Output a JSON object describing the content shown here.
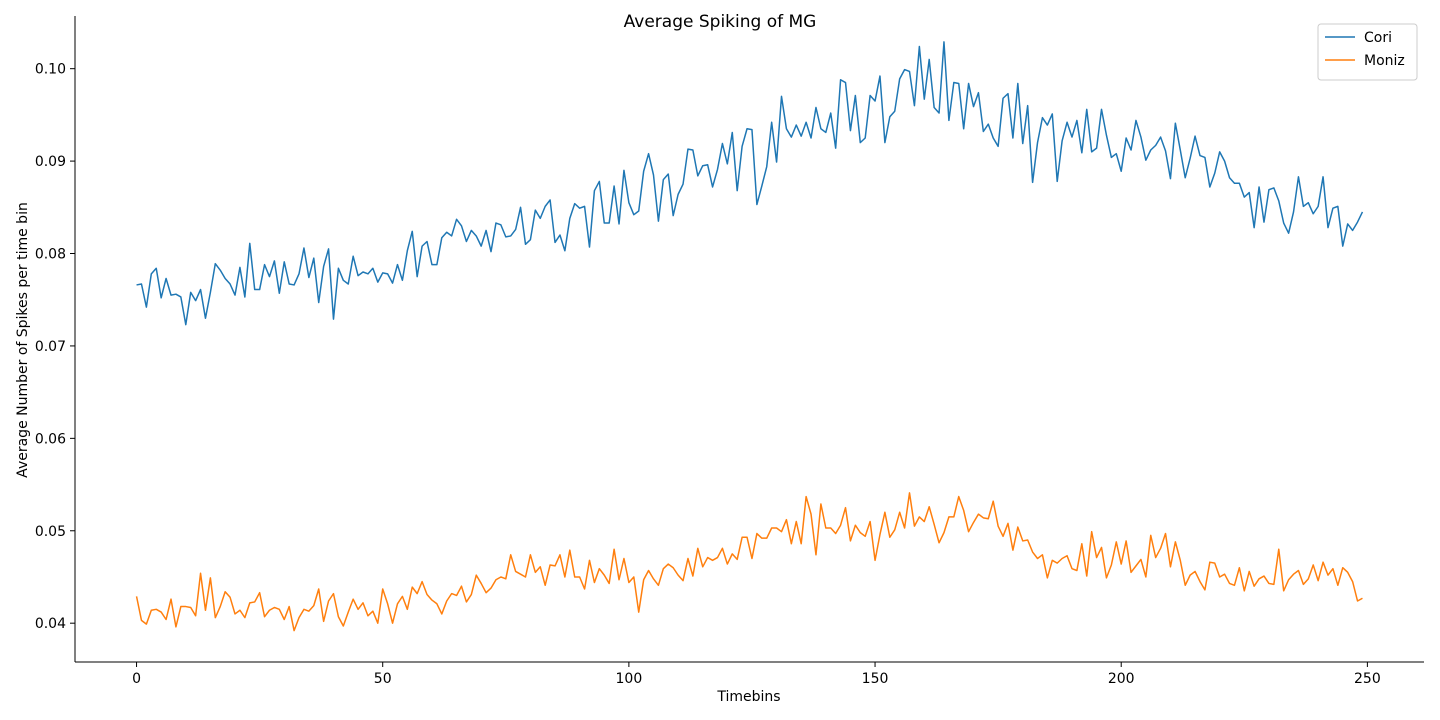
{
  "chart_data": {
    "type": "line",
    "title": "Average Spiking of MG",
    "xlabel": "Timebins",
    "ylabel": "Average Number of Spikes per time bin",
    "xlim": [
      -12.5,
      261.5
    ],
    "ylim": [
      0.0358,
      0.1057
    ],
    "xticks": [
      0,
      50,
      100,
      150,
      200,
      250
    ],
    "xtick_labels": [
      "0",
      "50",
      "100",
      "150",
      "200",
      "250"
    ],
    "yticks": [
      0.04,
      0.05,
      0.06,
      0.07,
      0.08,
      0.09,
      0.1
    ],
    "ytick_labels": [
      "0.04",
      "0.05",
      "0.06",
      "0.07",
      "0.08",
      "0.09",
      "0.10"
    ],
    "grid": false,
    "legend_position": "top-right",
    "series": [
      {
        "name": "Cori",
        "color": "#1f77b4",
        "values": [
          0.0766,
          0.0767,
          0.0742,
          0.0778,
          0.0784,
          0.0752,
          0.0773,
          0.0755,
          0.0756,
          0.0753,
          0.0723,
          0.0758,
          0.0749,
          0.0761,
          0.073,
          0.0758,
          0.0789,
          0.0782,
          0.0773,
          0.0767,
          0.0755,
          0.0785,
          0.0753,
          0.0811,
          0.0761,
          0.0761,
          0.0788,
          0.0775,
          0.0792,
          0.0757,
          0.0791,
          0.0767,
          0.0766,
          0.0778,
          0.0806,
          0.0774,
          0.0795,
          0.0747,
          0.0786,
          0.0805,
          0.0729,
          0.0784,
          0.0771,
          0.0767,
          0.0797,
          0.0776,
          0.078,
          0.0778,
          0.0784,
          0.0769,
          0.0779,
          0.0778,
          0.0768,
          0.0788,
          0.0771,
          0.0803,
          0.0824,
          0.0775,
          0.0808,
          0.0813,
          0.0788,
          0.0788,
          0.0817,
          0.0823,
          0.0819,
          0.0837,
          0.083,
          0.0813,
          0.0825,
          0.0819,
          0.0808,
          0.0825,
          0.0802,
          0.0833,
          0.0831,
          0.0818,
          0.0819,
          0.0826,
          0.085,
          0.081,
          0.0815,
          0.0847,
          0.0838,
          0.0851,
          0.0858,
          0.0812,
          0.082,
          0.0803,
          0.0838,
          0.0854,
          0.0849,
          0.0851,
          0.0807,
          0.0868,
          0.0878,
          0.0833,
          0.0833,
          0.0873,
          0.0832,
          0.089,
          0.0855,
          0.0842,
          0.0846,
          0.0889,
          0.0908,
          0.0885,
          0.0835,
          0.088,
          0.0886,
          0.0841,
          0.0864,
          0.0875,
          0.0913,
          0.0912,
          0.0884,
          0.0895,
          0.0896,
          0.0872,
          0.0891,
          0.0919,
          0.0897,
          0.0931,
          0.0868,
          0.0916,
          0.0935,
          0.0934,
          0.0853,
          0.0873,
          0.0894,
          0.0942,
          0.0899,
          0.097,
          0.0935,
          0.0926,
          0.0939,
          0.0927,
          0.0942,
          0.0925,
          0.0958,
          0.0935,
          0.0931,
          0.0952,
          0.0914,
          0.0988,
          0.0985,
          0.0933,
          0.0971,
          0.092,
          0.0925,
          0.0971,
          0.0965,
          0.0992,
          0.092,
          0.0948,
          0.0954,
          0.0989,
          0.0999,
          0.0997,
          0.096,
          0.1024,
          0.0967,
          0.101,
          0.0958,
          0.0952,
          0.1029,
          0.0944,
          0.0985,
          0.0984,
          0.0935,
          0.0984,
          0.0959,
          0.0974,
          0.0932,
          0.094,
          0.0925,
          0.0916,
          0.0968,
          0.0973,
          0.0925,
          0.0984,
          0.0919,
          0.096,
          0.0877,
          0.092,
          0.0947,
          0.0939,
          0.0951,
          0.0878,
          0.0922,
          0.0942,
          0.0926,
          0.0944,
          0.0909,
          0.0956,
          0.091,
          0.0914,
          0.0956,
          0.0928,
          0.0904,
          0.0908,
          0.0889,
          0.0925,
          0.0912,
          0.0944,
          0.0926,
          0.0901,
          0.0912,
          0.0917,
          0.0926,
          0.0911,
          0.0881,
          0.0941,
          0.0912,
          0.0882,
          0.0903,
          0.0927,
          0.0906,
          0.0904,
          0.0872,
          0.0887,
          0.091,
          0.09,
          0.0882,
          0.0876,
          0.0876,
          0.0861,
          0.0866,
          0.0828,
          0.0872,
          0.0834,
          0.0869,
          0.0871,
          0.0857,
          0.0833,
          0.0822,
          0.0845,
          0.0883,
          0.0851,
          0.0855,
          0.0843,
          0.0851,
          0.0883,
          0.0828,
          0.0849,
          0.0851,
          0.0808,
          0.0832,
          0.0825,
          0.0834,
          0.0845
        ]
      },
      {
        "name": "Moniz",
        "color": "#ff7f0e",
        "values": [
          0.0429,
          0.0403,
          0.0399,
          0.0414,
          0.0415,
          0.0412,
          0.0404,
          0.0426,
          0.0396,
          0.0418,
          0.0418,
          0.0417,
          0.0408,
          0.0454,
          0.0414,
          0.0449,
          0.0406,
          0.0418,
          0.0434,
          0.0428,
          0.041,
          0.0414,
          0.0406,
          0.0422,
          0.0423,
          0.0433,
          0.0407,
          0.0414,
          0.0417,
          0.0415,
          0.0404,
          0.0418,
          0.0392,
          0.0406,
          0.0415,
          0.0413,
          0.0419,
          0.0437,
          0.0402,
          0.0424,
          0.0432,
          0.0407,
          0.0397,
          0.0412,
          0.0426,
          0.0415,
          0.0422,
          0.0408,
          0.0413,
          0.04,
          0.0437,
          0.0421,
          0.04,
          0.0421,
          0.0429,
          0.0415,
          0.0439,
          0.0432,
          0.0445,
          0.0431,
          0.0425,
          0.0421,
          0.041,
          0.0424,
          0.0432,
          0.043,
          0.044,
          0.0423,
          0.0431,
          0.0452,
          0.0443,
          0.0433,
          0.0438,
          0.0447,
          0.045,
          0.0448,
          0.0474,
          0.0456,
          0.0453,
          0.045,
          0.0474,
          0.0455,
          0.0461,
          0.0441,
          0.0463,
          0.0462,
          0.0474,
          0.045,
          0.0479,
          0.045,
          0.045,
          0.0437,
          0.0468,
          0.0444,
          0.0459,
          0.0452,
          0.0443,
          0.048,
          0.0447,
          0.047,
          0.0444,
          0.045,
          0.0412,
          0.0447,
          0.0457,
          0.0448,
          0.0441,
          0.0459,
          0.0464,
          0.046,
          0.0452,
          0.0446,
          0.047,
          0.0451,
          0.0481,
          0.0461,
          0.0471,
          0.0468,
          0.0471,
          0.0481,
          0.0464,
          0.0475,
          0.0469,
          0.0493,
          0.0493,
          0.047,
          0.0497,
          0.0492,
          0.0492,
          0.0503,
          0.0503,
          0.0499,
          0.0512,
          0.0486,
          0.051,
          0.0486,
          0.0537,
          0.0518,
          0.0474,
          0.0529,
          0.0503,
          0.0503,
          0.0497,
          0.0506,
          0.0525,
          0.0489,
          0.0506,
          0.0498,
          0.0494,
          0.051,
          0.0468,
          0.0496,
          0.052,
          0.0493,
          0.0501,
          0.052,
          0.0503,
          0.0541,
          0.0505,
          0.0515,
          0.051,
          0.0526,
          0.0507,
          0.0487,
          0.0498,
          0.0515,
          0.0515,
          0.0537,
          0.0522,
          0.0499,
          0.0509,
          0.0518,
          0.0514,
          0.0513,
          0.0532,
          0.0505,
          0.0494,
          0.0508,
          0.0479,
          0.0504,
          0.0489,
          0.049,
          0.0477,
          0.047,
          0.0474,
          0.0449,
          0.0468,
          0.0465,
          0.047,
          0.0473,
          0.0459,
          0.0457,
          0.0486,
          0.0451,
          0.0499,
          0.0471,
          0.0482,
          0.0449,
          0.0463,
          0.0488,
          0.0464,
          0.0489,
          0.0455,
          0.0462,
          0.0469,
          0.045,
          0.0495,
          0.0471,
          0.0481,
          0.0497,
          0.0461,
          0.0488,
          0.0468,
          0.0441,
          0.0452,
          0.0456,
          0.0445,
          0.0436,
          0.0466,
          0.0465,
          0.045,
          0.0453,
          0.0443,
          0.0441,
          0.046,
          0.0435,
          0.0456,
          0.044,
          0.0448,
          0.0451,
          0.0443,
          0.0442,
          0.048,
          0.0435,
          0.0447,
          0.0453,
          0.0457,
          0.0442,
          0.0448,
          0.0463,
          0.0446,
          0.0466,
          0.0452,
          0.0459,
          0.0441,
          0.046,
          0.0455,
          0.0445,
          0.0424,
          0.0427
        ]
      }
    ]
  }
}
